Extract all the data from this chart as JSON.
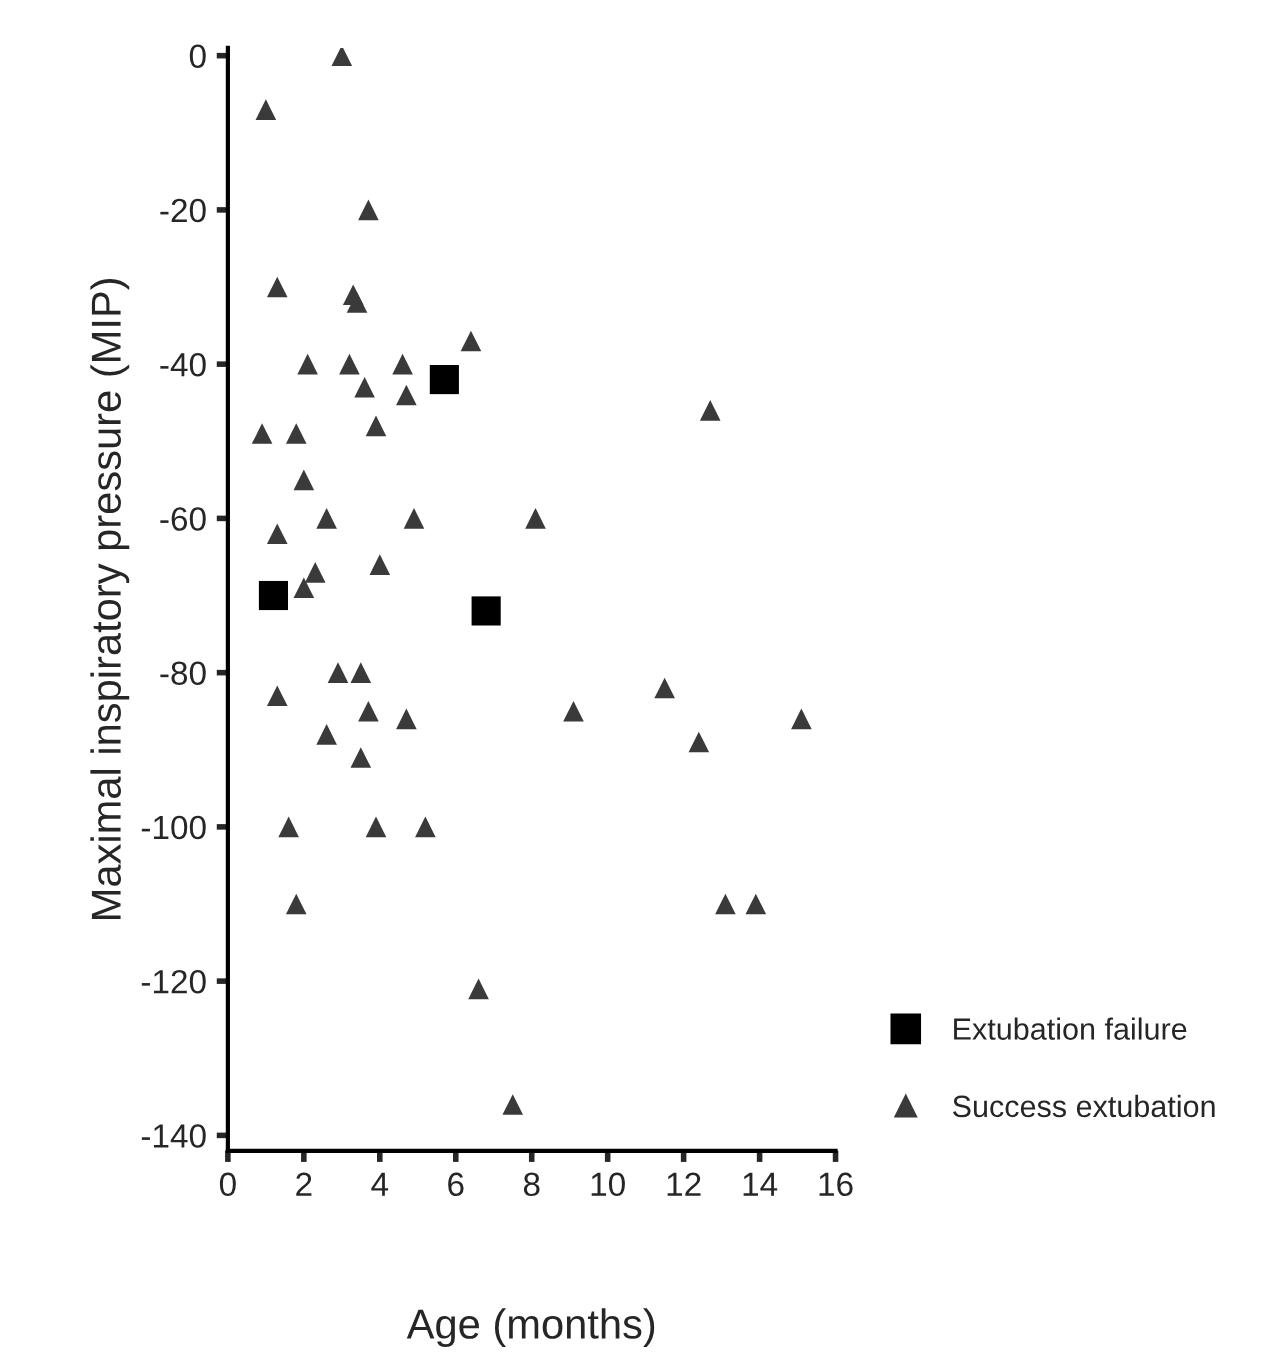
{
  "chart_data": {
    "type": "scatter",
    "xlabel": "Age (months)",
    "ylabel": "Maximal inspiratory pressure (MIP)",
    "xlim": [
      0,
      16
    ],
    "xticks": [
      0,
      2,
      4,
      6,
      8,
      10,
      12,
      14,
      16
    ],
    "ylim": [
      -142,
      1
    ],
    "yticks": [
      0,
      -20,
      -40,
      -60,
      -80,
      -100,
      -120,
      -140
    ],
    "grid": false,
    "legend": "right",
    "series": [
      {
        "name": "Extubation failure",
        "color": "#000000",
        "marker": "square",
        "x": [
          1.2,
          5.7,
          6.8
        ],
        "values": [
          -70,
          -42,
          -72
        ]
      },
      {
        "name": "Success extubation",
        "color": "#3a3a3a",
        "marker": "triangle",
        "x": [
          3,
          1,
          3.7,
          1.3,
          3.3,
          3.4,
          6.4,
          2.1,
          3.2,
          4.6,
          3.6,
          4.7,
          0.9,
          1.8,
          3.9,
          2,
          2.6,
          4.9,
          8.1,
          12.7,
          1.3,
          2.3,
          2.0,
          4.0,
          2.9,
          3.5,
          1.3,
          3.7,
          4.7,
          2.6,
          3.5,
          9.1,
          11.5,
          12.4,
          15.1,
          1.6,
          3.9,
          5.2,
          1.8,
          13.1,
          13.9,
          6.6,
          7.5
        ],
        "values": [
          0,
          -7,
          -20,
          -30,
          -31,
          -32,
          -37,
          -40,
          -40,
          -40,
          -43,
          -44,
          -49,
          -49,
          -48,
          -55,
          -60,
          -60,
          -60,
          -46,
          -62,
          -67,
          -69,
          -66,
          -80,
          -80,
          -83,
          -85,
          -86,
          -88,
          -91,
          -85,
          -82,
          -89,
          -86,
          -100,
          -100,
          -100,
          -110,
          -110,
          -110,
          -121,
          -136
        ]
      }
    ]
  }
}
